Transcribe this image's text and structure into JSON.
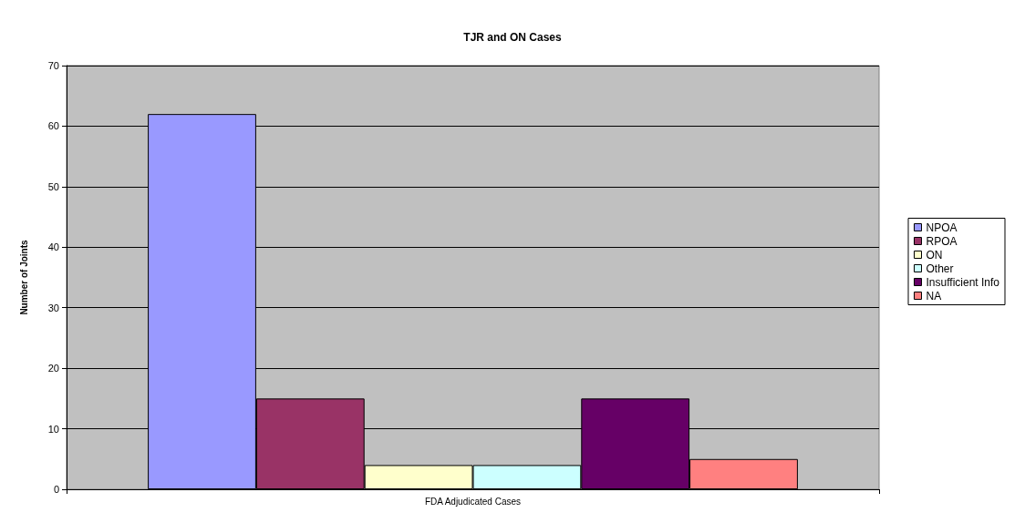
{
  "chart_data": {
    "type": "bar",
    "title": "TJR and ON Cases",
    "ylabel": "Number of Joints",
    "categories": [
      "FDA Adjudicated Cases"
    ],
    "series": [
      {
        "name": "NPOA",
        "color": "#9999ff",
        "values": [
          62
        ]
      },
      {
        "name": "RPOA",
        "color": "#993366",
        "values": [
          15
        ]
      },
      {
        "name": "ON",
        "color": "#ffffcc",
        "values": [
          4
        ]
      },
      {
        "name": "Other",
        "color": "#ccffff",
        "values": [
          4
        ]
      },
      {
        "name": "Insufficient Info",
        "color": "#660066",
        "values": [
          15
        ]
      },
      {
        "name": "NA",
        "color": "#ff8080",
        "values": [
          5
        ]
      }
    ],
    "ylim": [
      0,
      70
    ],
    "yticks": [
      0,
      10,
      20,
      30,
      40,
      50,
      60,
      70
    ],
    "grid": "y",
    "legend": "right"
  }
}
